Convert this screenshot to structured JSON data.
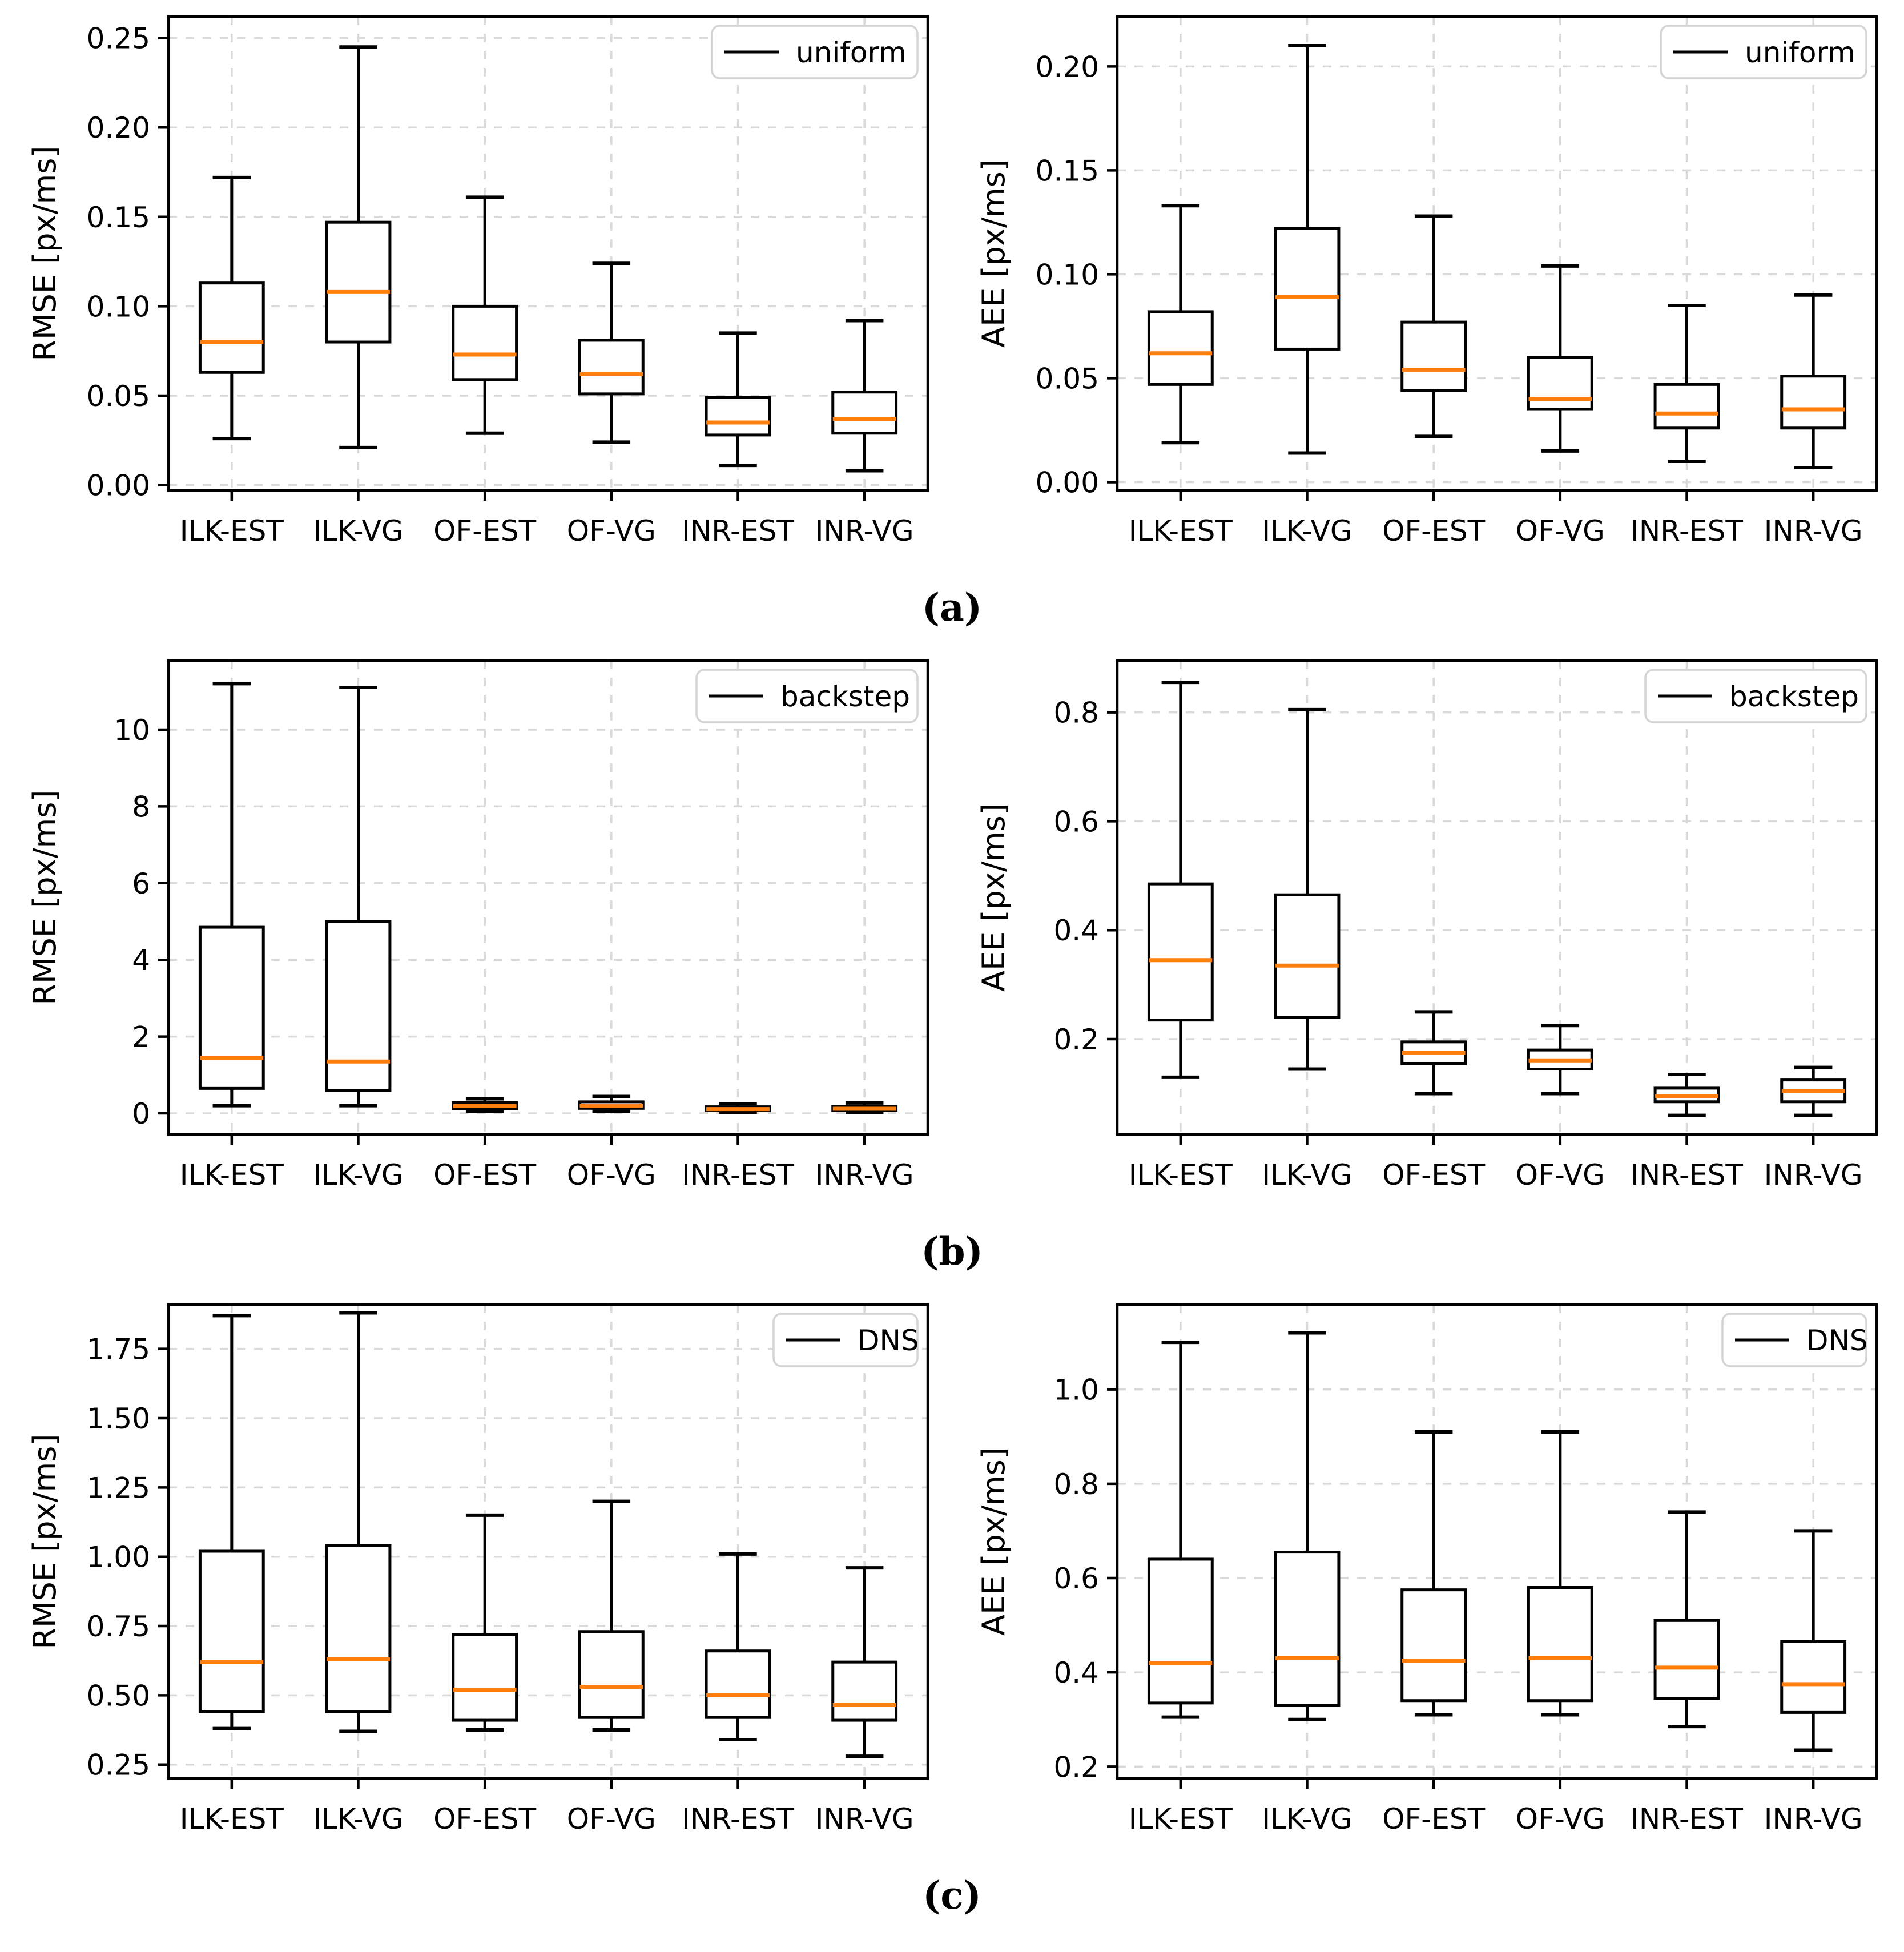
{
  "figure": {
    "captions": [
      "(a)",
      "(b)",
      "(c)"
    ]
  },
  "colors": {
    "median": "#ff7f0e",
    "box_stroke": "#000000",
    "grid": "#d9d9d9",
    "legend_border": "#d4d4d4",
    "background": "#ffffff"
  },
  "categories": [
    "ILK-EST",
    "ILK-VG",
    "OF-EST",
    "OF-VG",
    "INR-EST",
    "INR-VG"
  ],
  "chart_data": [
    {
      "type": "boxplot",
      "row": "a",
      "position": "left",
      "ylabel": "RMSE [px/ms]",
      "legend": "uniform",
      "legend_position": "upper right",
      "grid": "dashed",
      "ylim": [
        -0.003,
        0.262
      ],
      "yticks": [
        0,
        0.05,
        0.1,
        0.15,
        0.2,
        0.25
      ],
      "ytick_labels": [
        "0.00",
        "0.05",
        "0.10",
        "0.15",
        "0.20",
        "0.25"
      ],
      "boxes": [
        {
          "category": "ILK-EST",
          "whislo": 0.026,
          "q1": 0.063,
          "med": 0.08,
          "q3": 0.113,
          "whishi": 0.172
        },
        {
          "category": "ILK-VG",
          "whislo": 0.021,
          "q1": 0.08,
          "med": 0.108,
          "q3": 0.147,
          "whishi": 0.245
        },
        {
          "category": "OF-EST",
          "whislo": 0.029,
          "q1": 0.059,
          "med": 0.073,
          "q3": 0.1,
          "whishi": 0.161
        },
        {
          "category": "OF-VG",
          "whislo": 0.024,
          "q1": 0.051,
          "med": 0.062,
          "q3": 0.081,
          "whishi": 0.124
        },
        {
          "category": "INR-EST",
          "whislo": 0.011,
          "q1": 0.028,
          "med": 0.035,
          "q3": 0.049,
          "whishi": 0.085
        },
        {
          "category": "INR-VG",
          "whislo": 0.008,
          "q1": 0.029,
          "med": 0.037,
          "q3": 0.052,
          "whishi": 0.092
        }
      ]
    },
    {
      "type": "boxplot",
      "row": "a",
      "position": "right",
      "ylabel": "AEE [px/ms]",
      "legend": "uniform",
      "legend_position": "upper right",
      "grid": "dashed",
      "ylim": [
        -0.004,
        0.224
      ],
      "yticks": [
        0,
        0.05,
        0.1,
        0.15,
        0.2
      ],
      "ytick_labels": [
        "0.00",
        "0.05",
        "0.10",
        "0.15",
        "0.20"
      ],
      "boxes": [
        {
          "category": "ILK-EST",
          "whislo": 0.019,
          "q1": 0.047,
          "med": 0.062,
          "q3": 0.082,
          "whishi": 0.133
        },
        {
          "category": "ILK-VG",
          "whislo": 0.014,
          "q1": 0.064,
          "med": 0.089,
          "q3": 0.122,
          "whishi": 0.21
        },
        {
          "category": "OF-EST",
          "whislo": 0.022,
          "q1": 0.044,
          "med": 0.054,
          "q3": 0.077,
          "whishi": 0.128
        },
        {
          "category": "OF-VG",
          "whislo": 0.015,
          "q1": 0.035,
          "med": 0.04,
          "q3": 0.06,
          "whishi": 0.104
        },
        {
          "category": "INR-EST",
          "whislo": 0.01,
          "q1": 0.026,
          "med": 0.033,
          "q3": 0.047,
          "whishi": 0.085
        },
        {
          "category": "INR-VG",
          "whislo": 0.007,
          "q1": 0.026,
          "med": 0.035,
          "q3": 0.051,
          "whishi": 0.09
        }
      ]
    },
    {
      "type": "boxplot",
      "row": "b",
      "position": "left",
      "ylabel": "RMSE [px/ms]",
      "legend": "backstep",
      "legend_position": "upper right",
      "grid": "dashed",
      "ylim": [
        -0.55,
        11.8
      ],
      "yticks": [
        0,
        2,
        4,
        6,
        8,
        10
      ],
      "ytick_labels": [
        "0",
        "2",
        "4",
        "6",
        "8",
        "10"
      ],
      "boxes": [
        {
          "category": "ILK-EST",
          "whislo": 0.2,
          "q1": 0.65,
          "med": 1.45,
          "q3": 4.85,
          "whishi": 11.2
        },
        {
          "category": "ILK-VG",
          "whislo": 0.2,
          "q1": 0.6,
          "med": 1.35,
          "q3": 5.0,
          "whishi": 11.1
        },
        {
          "category": "OF-EST",
          "whislo": 0.05,
          "q1": 0.12,
          "med": 0.19,
          "q3": 0.28,
          "whishi": 0.38
        },
        {
          "category": "OF-VG",
          "whislo": 0.05,
          "q1": 0.13,
          "med": 0.2,
          "q3": 0.3,
          "whishi": 0.44
        },
        {
          "category": "INR-EST",
          "whislo": 0.03,
          "q1": 0.07,
          "med": 0.11,
          "q3": 0.17,
          "whishi": 0.25
        },
        {
          "category": "INR-VG",
          "whislo": 0.03,
          "q1": 0.08,
          "med": 0.12,
          "q3": 0.18,
          "whishi": 0.27
        }
      ]
    },
    {
      "type": "boxplot",
      "row": "b",
      "position": "right",
      "ylabel": "AEE [px/ms]",
      "legend": "backstep",
      "legend_position": "upper right",
      "grid": "dashed",
      "ylim": [
        0.025,
        0.895
      ],
      "yticks": [
        0.2,
        0.4,
        0.6,
        0.8
      ],
      "ytick_labels": [
        "0.2",
        "0.4",
        "0.6",
        "0.8"
      ],
      "boxes": [
        {
          "category": "ILK-EST",
          "whislo": 0.13,
          "q1": 0.235,
          "med": 0.345,
          "q3": 0.485,
          "whishi": 0.855
        },
        {
          "category": "ILK-VG",
          "whislo": 0.145,
          "q1": 0.24,
          "med": 0.335,
          "q3": 0.465,
          "whishi": 0.805
        },
        {
          "category": "OF-EST",
          "whislo": 0.1,
          "q1": 0.155,
          "med": 0.175,
          "q3": 0.195,
          "whishi": 0.25
        },
        {
          "category": "OF-VG",
          "whislo": 0.1,
          "q1": 0.145,
          "med": 0.16,
          "q3": 0.18,
          "whishi": 0.225
        },
        {
          "category": "INR-EST",
          "whislo": 0.06,
          "q1": 0.085,
          "med": 0.095,
          "q3": 0.11,
          "whishi": 0.135
        },
        {
          "category": "INR-VG",
          "whislo": 0.06,
          "q1": 0.085,
          "med": 0.105,
          "q3": 0.125,
          "whishi": 0.148
        }
      ]
    },
    {
      "type": "boxplot",
      "row": "c",
      "position": "left",
      "ylabel": "RMSE [px/ms]",
      "legend": "DNS",
      "legend_position": "upper right",
      "grid": "dashed",
      "ylim": [
        0.2,
        1.91
      ],
      "yticks": [
        0.25,
        0.5,
        0.75,
        1.0,
        1.25,
        1.5,
        1.75
      ],
      "ytick_labels": [
        "0.25",
        "0.50",
        "0.75",
        "1.00",
        "1.25",
        "1.50",
        "1.75"
      ],
      "boxes": [
        {
          "category": "ILK-EST",
          "whislo": 0.38,
          "q1": 0.44,
          "med": 0.62,
          "q3": 1.02,
          "whishi": 1.87
        },
        {
          "category": "ILK-VG",
          "whislo": 0.37,
          "q1": 0.44,
          "med": 0.63,
          "q3": 1.04,
          "whishi": 1.88
        },
        {
          "category": "OF-EST",
          "whislo": 0.375,
          "q1": 0.41,
          "med": 0.52,
          "q3": 0.72,
          "whishi": 1.15
        },
        {
          "category": "OF-VG",
          "whislo": 0.375,
          "q1": 0.42,
          "med": 0.53,
          "q3": 0.73,
          "whishi": 1.2
        },
        {
          "category": "INR-EST",
          "whislo": 0.34,
          "q1": 0.42,
          "med": 0.5,
          "q3": 0.66,
          "whishi": 1.01
        },
        {
          "category": "INR-VG",
          "whislo": 0.28,
          "q1": 0.41,
          "med": 0.465,
          "q3": 0.62,
          "whishi": 0.96
        }
      ]
    },
    {
      "type": "boxplot",
      "row": "c",
      "position": "right",
      "ylabel": "AEE [px/ms]",
      "legend": "DNS",
      "legend_position": "upper right",
      "grid": "dashed",
      "ylim": [
        0.175,
        1.18
      ],
      "yticks": [
        0.2,
        0.4,
        0.6,
        0.8,
        1.0
      ],
      "ytick_labels": [
        "0.2",
        "0.4",
        "0.6",
        "0.8",
        "1.0"
      ],
      "boxes": [
        {
          "category": "ILK-EST",
          "whislo": 0.305,
          "q1": 0.335,
          "med": 0.42,
          "q3": 0.64,
          "whishi": 1.1
        },
        {
          "category": "ILK-VG",
          "whislo": 0.3,
          "q1": 0.33,
          "med": 0.43,
          "q3": 0.655,
          "whishi": 1.12
        },
        {
          "category": "OF-EST",
          "whislo": 0.31,
          "q1": 0.34,
          "med": 0.425,
          "q3": 0.575,
          "whishi": 0.91
        },
        {
          "category": "OF-VG",
          "whislo": 0.31,
          "q1": 0.34,
          "med": 0.43,
          "q3": 0.58,
          "whishi": 0.91
        },
        {
          "category": "INR-EST",
          "whislo": 0.285,
          "q1": 0.345,
          "med": 0.41,
          "q3": 0.51,
          "whishi": 0.74
        },
        {
          "category": "INR-VG",
          "whislo": 0.235,
          "q1": 0.315,
          "med": 0.375,
          "q3": 0.465,
          "whishi": 0.7
        }
      ]
    }
  ]
}
